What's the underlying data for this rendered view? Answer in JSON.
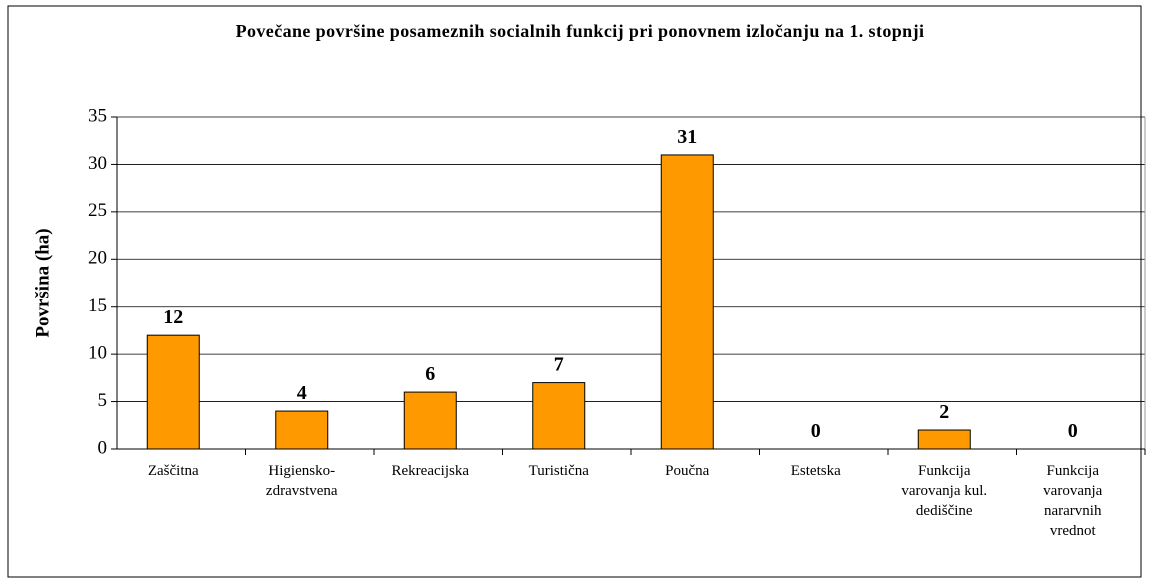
{
  "chart_data": {
    "type": "bar",
    "title": "Povečane površine posameznih socialnih funkcij pri ponovnem izločanju na 1. stopnji",
    "y_label": "Površina (ha)",
    "categories": [
      [
        "Zaščitna"
      ],
      [
        "Higiensko-",
        "zdravstvena"
      ],
      [
        "Rekreacijska"
      ],
      [
        "Turistična"
      ],
      [
        "Poučna"
      ],
      [
        "Estetska"
      ],
      [
        "Funkcija",
        "varovanja kul.",
        "dediščine"
      ],
      [
        "Funkcija",
        "varovanja",
        "nararvnih",
        "vrednot"
      ]
    ],
    "values": [
      12,
      4,
      6,
      7,
      31,
      0,
      2,
      0
    ],
    "color": "#ff9900",
    "ylim": [
      0,
      35
    ],
    "yticks": [
      0,
      5,
      10,
      15,
      20,
      25,
      30,
      35
    ],
    "grid": true
  }
}
